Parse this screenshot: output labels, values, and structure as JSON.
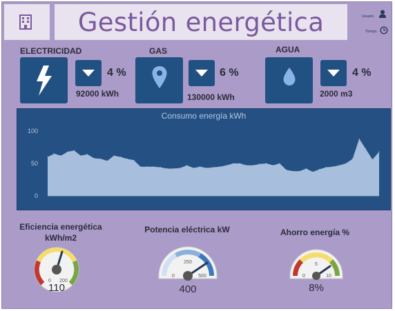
{
  "header": {
    "title": "Gestión energética",
    "user_label": "Usuario",
    "time_label": "Tiempo",
    "building_icon": "building-icon",
    "user_icon": "user-icon",
    "clock_icon": "clock-icon"
  },
  "kpis": [
    {
      "label": "ELECTRICIDAD",
      "icon": "lightning-icon",
      "trend": "down",
      "percent": "4 %",
      "value": "92000 kWh"
    },
    {
      "label": "GAS",
      "icon": "location-pin-icon",
      "trend": "down",
      "percent": "6 %",
      "value": "130000 kWh"
    },
    {
      "label": "AGUA",
      "icon": "water-drop-icon",
      "trend": "down",
      "percent": "4 %",
      "value": "2000 m3"
    }
  ],
  "chart_data": {
    "type": "area",
    "title": "Consumo energía kWh",
    "ylim": [
      0,
      100
    ],
    "yticks": [
      "0",
      "50",
      "100"
    ],
    "values": [
      60,
      65,
      62,
      68,
      70,
      62,
      64,
      58,
      57,
      54,
      62,
      60,
      57,
      55,
      45,
      45,
      45,
      44,
      42,
      42,
      43,
      47,
      43,
      45,
      43,
      44,
      45,
      47,
      50,
      50,
      47,
      47,
      49,
      50,
      47,
      50,
      40,
      38,
      38,
      42,
      37,
      41,
      44,
      45,
      47,
      50,
      57,
      88,
      72,
      56,
      68
    ],
    "colors": {
      "background": "#245084",
      "fill": "#a7bedc",
      "axis": "#b6c6df"
    }
  },
  "gauges": [
    {
      "title": "Eficiencia energética kWh/m2",
      "value": "110",
      "ticks": [
        "0",
        "100",
        "200"
      ]
    },
    {
      "title": "Potencia eléctrica kW",
      "value": "400",
      "ticks": [
        "0",
        "250",
        "500"
      ]
    },
    {
      "title": "Ahorro energía %",
      "value": "8%",
      "ticks": [
        "0",
        "5",
        "10"
      ]
    }
  ]
}
